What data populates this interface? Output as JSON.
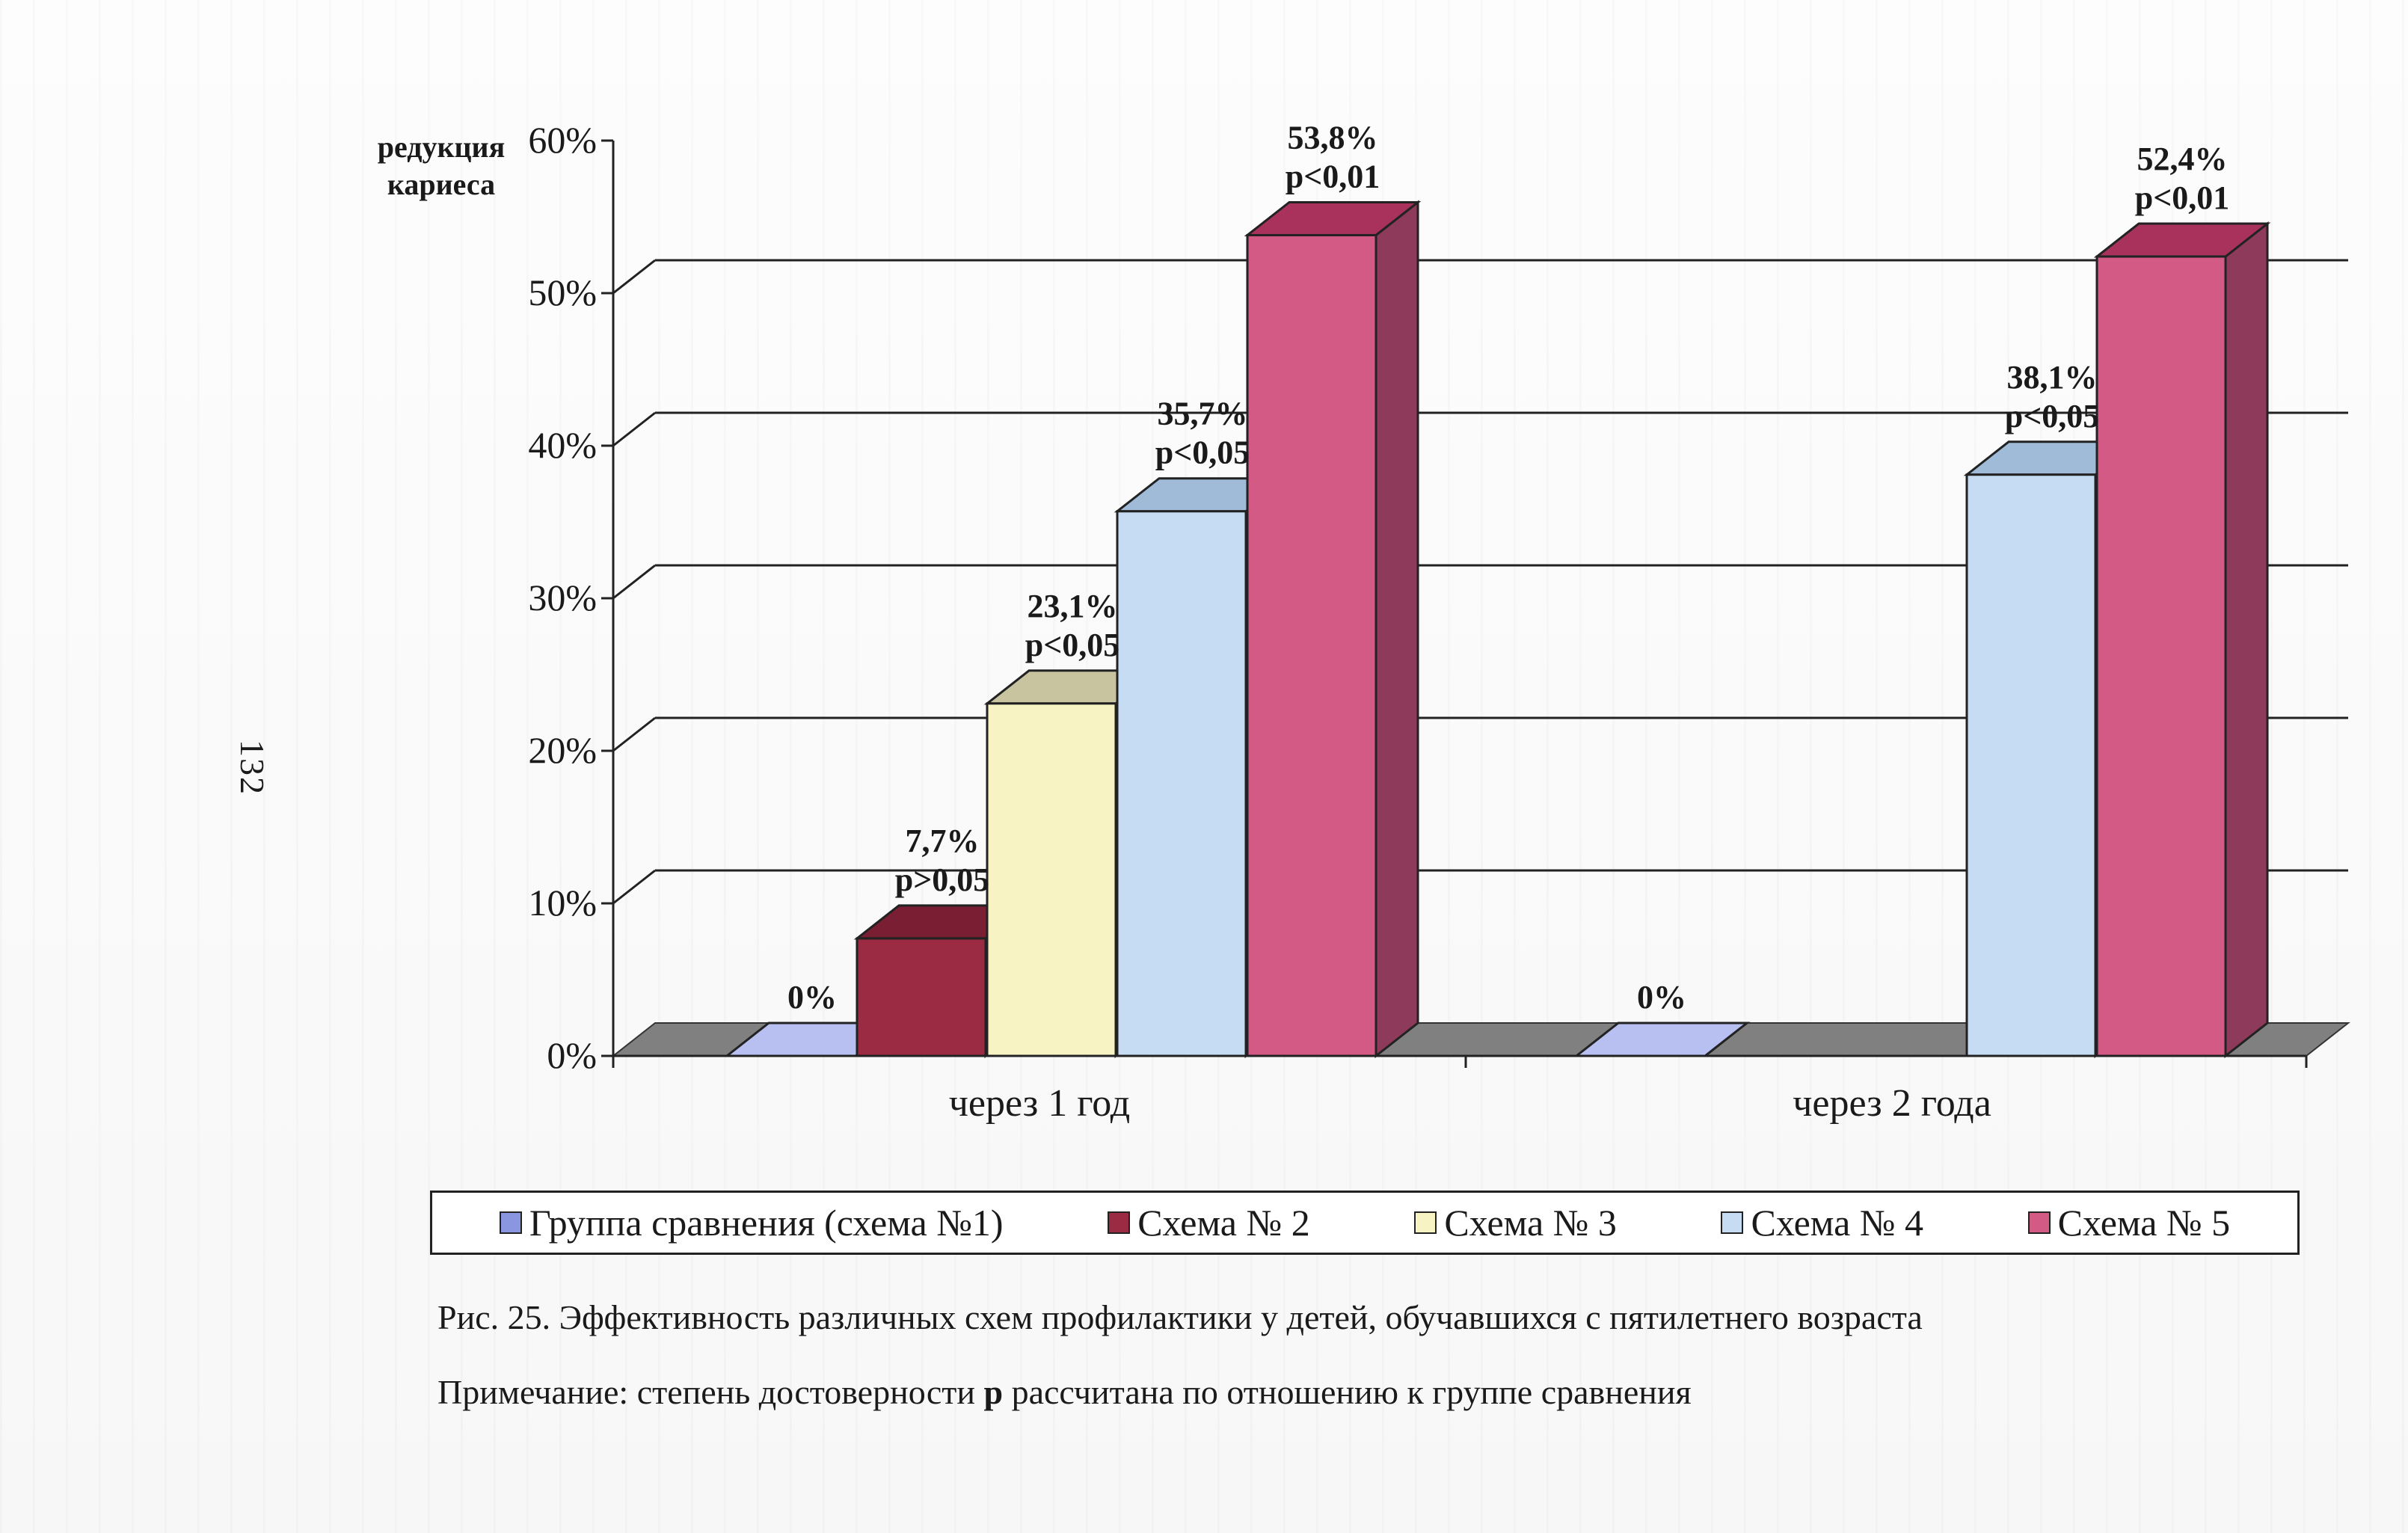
{
  "page_number": "132",
  "chart_data": {
    "type": "bar",
    "ylabel": "редукция кариеса",
    "ylabel_lines": [
      "редукция",
      "кариеса"
    ],
    "ylim": [
      0,
      60
    ],
    "yticks": [
      0,
      10,
      20,
      30,
      40,
      50,
      60
    ],
    "yticklabels": [
      "0%",
      "10%",
      "20%",
      "30%",
      "40%",
      "50%",
      "60%"
    ],
    "grid": true,
    "three_d": true,
    "legend_position": "bottom",
    "categories": [
      "через 1 год",
      "через 2 года"
    ],
    "series": [
      {
        "name": "Группа сравнения (схема №1)",
        "color": "#8a97e0",
        "top_color": "#b7c0f0",
        "side_color": "#5d6bc2",
        "values": [
          0,
          0
        ],
        "labels": [
          [
            "0%"
          ],
          [
            "0%"
          ]
        ]
      },
      {
        "name": "Схема № 2",
        "color": "#9b2a43",
        "top_color": "#7a1e34",
        "side_color": "#6a1a2c",
        "values": [
          7.7,
          null
        ],
        "labels": [
          [
            "7,7%",
            "p>0,05"
          ],
          null
        ]
      },
      {
        "name": "Схема № 3",
        "color": "#f7f3c3",
        "top_color": "#c8c4a0",
        "side_color": "#b0ac88",
        "values": [
          23.1,
          null
        ],
        "labels": [
          [
            "23,1%",
            "p<0,05"
          ],
          null
        ]
      },
      {
        "name": "Схема № 4",
        "color": "#c6dcf2",
        "top_color": "#9fbbd8",
        "side_color": "#8fa9c6",
        "values": [
          35.7,
          38.1
        ],
        "labels": [
          [
            "35,7%",
            "p<0,05"
          ],
          [
            "38,1%",
            "p<0,05"
          ]
        ]
      },
      {
        "name": "Схема № 5",
        "color": "#d45a86",
        "top_color": "#a8325c",
        "side_color": "#8e3a5a",
        "values": [
          53.8,
          52.4
        ],
        "labels": [
          [
            "53,8%",
            "p<0,01"
          ],
          [
            "52,4%",
            "p<0,01"
          ]
        ]
      }
    ]
  },
  "legend": [
    {
      "label": "Группа сравнения (схема №1)",
      "color": "#8a97e0"
    },
    {
      "label": "Схема № 2",
      "color": "#9b2a43"
    },
    {
      "label": "Схема № 3",
      "color": "#f7f3c3"
    },
    {
      "label": "Схема № 4",
      "color": "#c6dcf2"
    },
    {
      "label": "Схема № 5",
      "color": "#d45a86"
    }
  ],
  "caption": "Рис. 25. Эффективность различных схем профилактики у детей, обучавшихся с пятилетнего  возраста",
  "note": {
    "prefix": "Примечание: степень достоверности ",
    "bold": "р",
    "suffix": " рассчитана по отношению к группе сравнения"
  }
}
